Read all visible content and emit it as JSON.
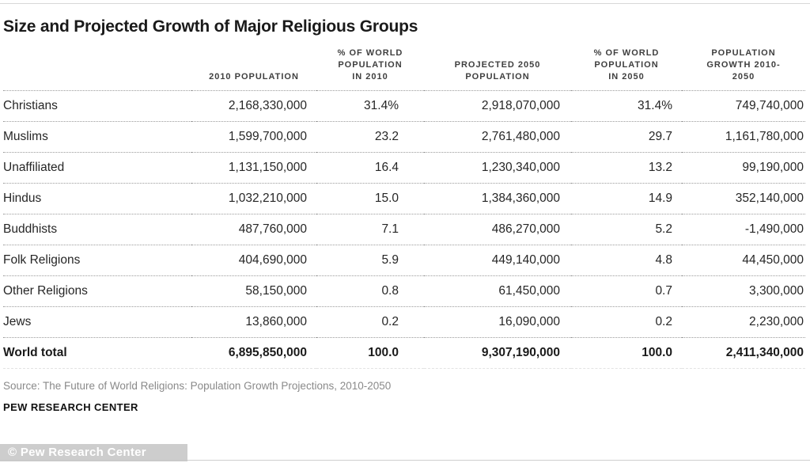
{
  "title": "Size and Projected Growth of Major Religious Groups",
  "table": {
    "headers": {
      "group": "",
      "pop2010": "2010 POPULATION",
      "pct2010": "% OF WORLD\nPOPULATION\nIN 2010",
      "pop2050": "PROJECTED 2050\nPOPULATION",
      "pct2050": "% OF WORLD\nPOPULATION\nIN 2050",
      "growth": "POPULATION\nGROWTH 2010-\n2050"
    },
    "rows": [
      {
        "cells": [
          "Christians",
          "2,168,330,000",
          "31.4%",
          "2,918,070,000",
          "31.4%",
          "749,740,000"
        ]
      },
      {
        "cells": [
          "Muslims",
          "1,599,700,000",
          "23.2",
          "2,761,480,000",
          "29.7",
          "1,161,780,000"
        ]
      },
      {
        "cells": [
          "Unaffiliated",
          "1,131,150,000",
          "16.4",
          "1,230,340,000",
          "13.2",
          "99,190,000"
        ]
      },
      {
        "cells": [
          "Hindus",
          "1,032,210,000",
          "15.0",
          "1,384,360,000",
          "14.9",
          "352,140,000"
        ]
      },
      {
        "cells": [
          "Buddhists",
          "487,760,000",
          "7.1",
          "486,270,000",
          "5.2",
          "-1,490,000"
        ]
      },
      {
        "cells": [
          "Folk Religions",
          "404,690,000",
          "5.9",
          "449,140,000",
          "4.8",
          "44,450,000"
        ]
      },
      {
        "cells": [
          "Other Religions",
          "58,150,000",
          "0.8",
          "61,450,000",
          "0.7",
          "3,300,000"
        ]
      },
      {
        "cells": [
          "Jews",
          "13,860,000",
          "0.2",
          "16,090,000",
          "0.2",
          "2,230,000"
        ]
      }
    ],
    "total_row": {
      "cells": [
        "World total",
        "6,895,850,000",
        "100.0",
        "9,307,190,000",
        "100.0",
        "2,411,340,000"
      ]
    }
  },
  "source": "Source: The Future of World Religions: Population Growth Projections, 2010-2050",
  "branding": "PEW RESEARCH CENTER",
  "watermark": "© Pew Research Center",
  "colors": {
    "title_text": "#1a1a1a",
    "header_text": "#3f3f3f",
    "body_text": "#262626",
    "source_text": "#8a8a8a",
    "dotted_rule": "#9b9b9b",
    "watermark_bg": "#c6c6c6",
    "watermark_text": "#ffffff"
  },
  "chart_data": {
    "type": "table",
    "title": "Size and Projected Growth of Major Religious Groups",
    "columns": [
      "2010 Population",
      "% of World Population in 2010",
      "Projected 2050 Population",
      "% of World Population in 2050",
      "Population Growth 2010-2050"
    ],
    "categories": [
      "Christians",
      "Muslims",
      "Unaffiliated",
      "Hindus",
      "Buddhists",
      "Folk Religions",
      "Other Religions",
      "Jews",
      "World total"
    ],
    "series": [
      {
        "name": "2010 Population",
        "values": [
          2168330000,
          1599700000,
          1131150000,
          1032210000,
          487760000,
          404690000,
          58150000,
          13860000,
          6895850000
        ]
      },
      {
        "name": "% of World Population in 2010",
        "values": [
          31.4,
          23.2,
          16.4,
          15.0,
          7.1,
          5.9,
          0.8,
          0.2,
          100.0
        ]
      },
      {
        "name": "Projected 2050 Population",
        "values": [
          2918070000,
          2761480000,
          1230340000,
          1384360000,
          486270000,
          449140000,
          61450000,
          16090000,
          9307190000
        ]
      },
      {
        "name": "% of World Population in 2050",
        "values": [
          31.4,
          29.7,
          13.2,
          14.9,
          5.2,
          4.8,
          0.7,
          0.2,
          100.0
        ]
      },
      {
        "name": "Population Growth 2010-2050",
        "values": [
          749740000,
          1161780000,
          99190000,
          352140000,
          -1490000,
          44450000,
          3300000,
          2230000,
          2411340000
        ]
      }
    ],
    "source": "The Future of World Religions: Population Growth Projections, 2010-2050"
  }
}
